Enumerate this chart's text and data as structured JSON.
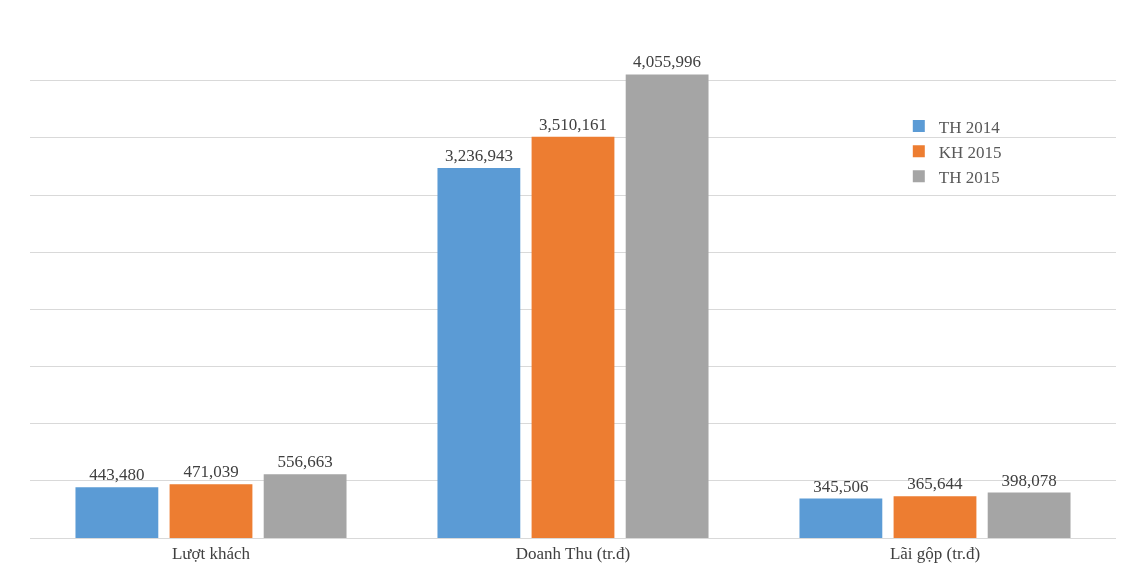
{
  "chart_data": {
    "type": "bar",
    "categories": [
      "Lượt khách",
      "Doanh Thu (tr.đ)",
      "Lãi gộp (tr.đ)"
    ],
    "series": [
      {
        "name": "TH 2014",
        "color": "#5b9bd5",
        "values": [
          443480,
          3236943,
          345506
        ],
        "value_labels": [
          "443,480",
          "3,236,943",
          "345,506"
        ]
      },
      {
        "name": "KH 2015",
        "color": "#ed7d31",
        "values": [
          471039,
          3510161,
          365644
        ],
        "value_labels": [
          "471,039",
          "3,510,161",
          "365,644"
        ]
      },
      {
        "name": "TH 2015",
        "color": "#a5a5a5",
        "values": [
          556663,
          4055996,
          398078
        ],
        "value_labels": [
          "556,663",
          "4,055,996",
          "398,078"
        ]
      }
    ],
    "grid": "y",
    "legend": "top right",
    "tick_labels": "x"
  }
}
